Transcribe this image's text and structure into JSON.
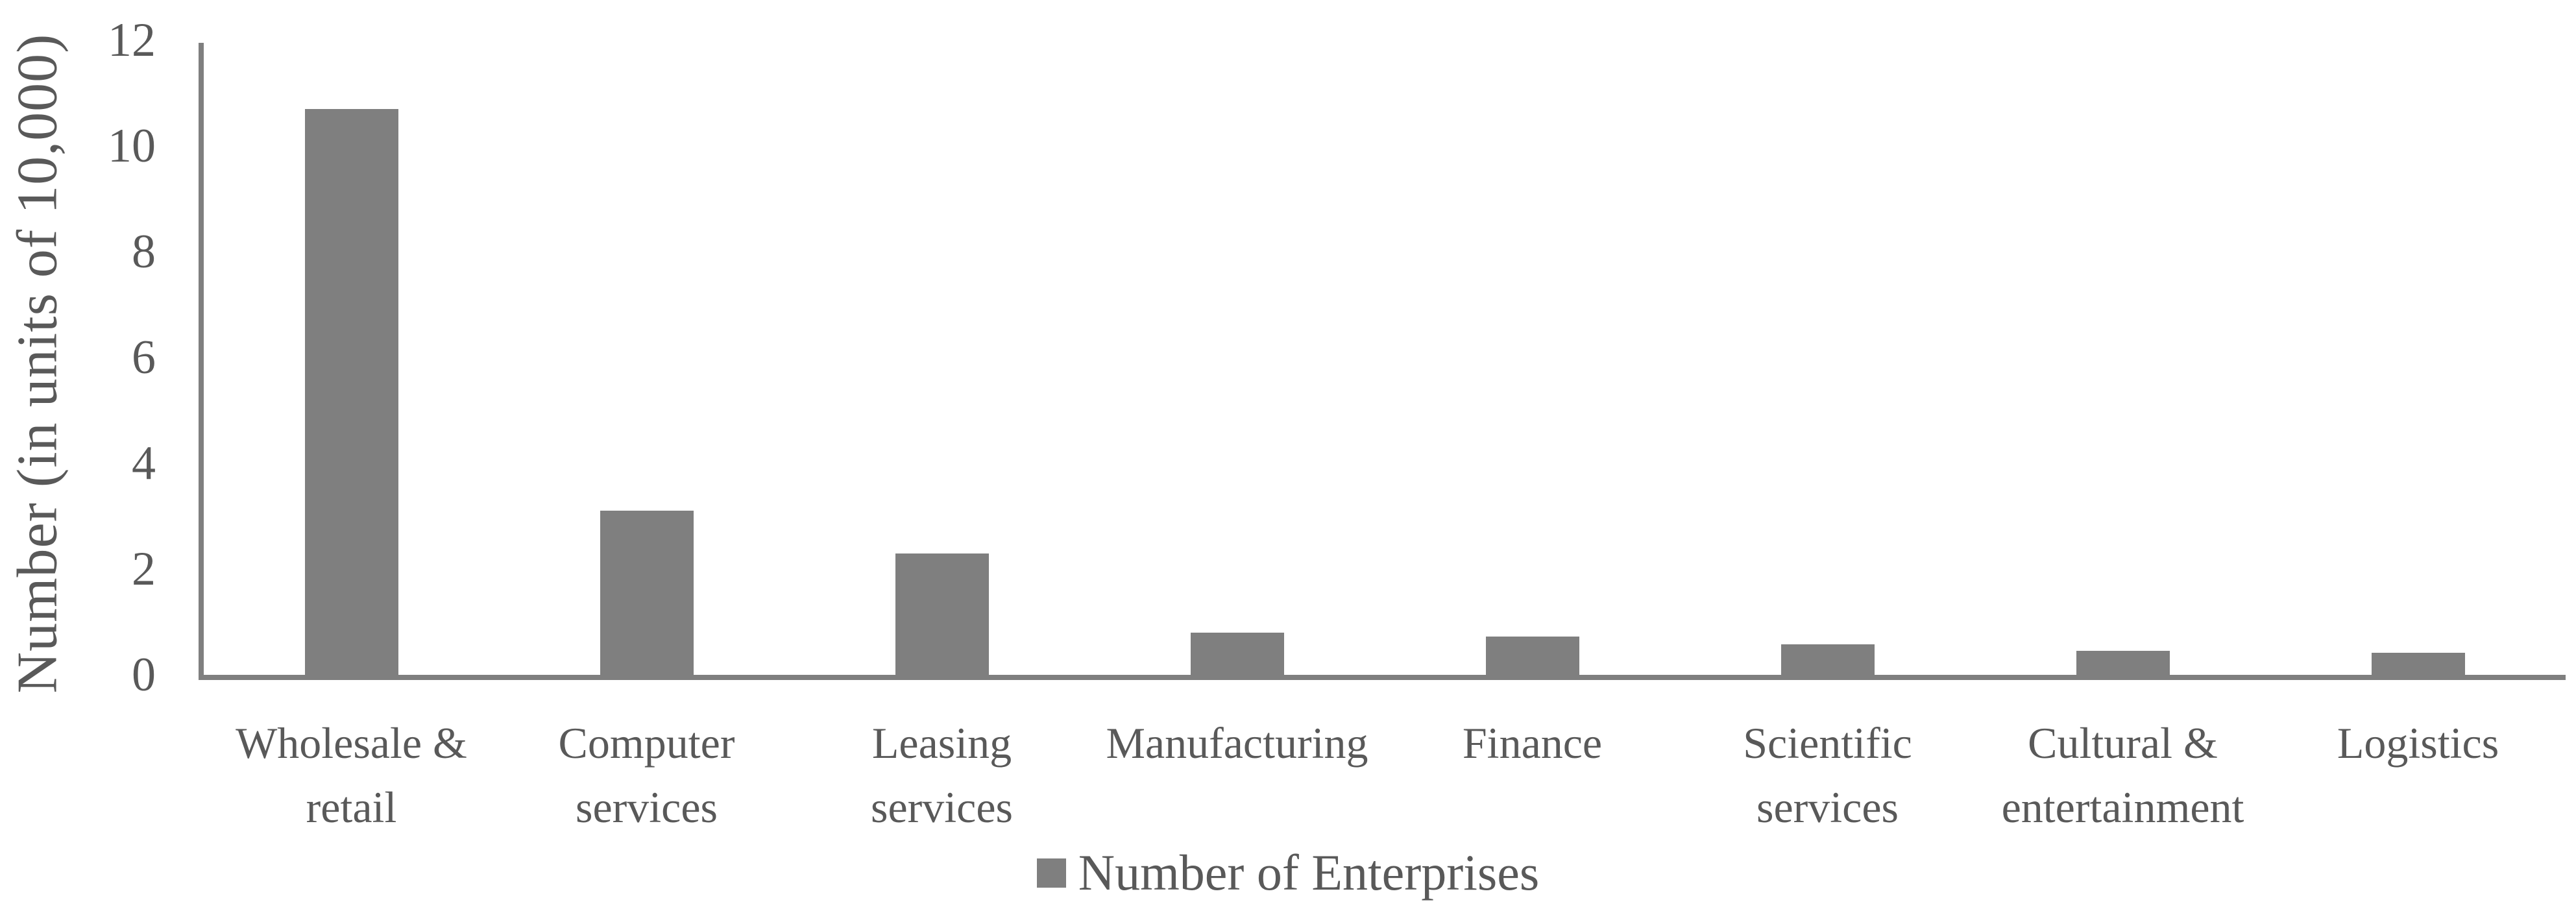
{
  "chart_data": {
    "type": "bar",
    "title": "",
    "xlabel": "",
    "ylabel": "Number (in units of 10,000)",
    "categories": [
      "Wholesale &\nretail",
      "Computer\nservices",
      "Leasing\nservices",
      "Manufacturing",
      "Finance",
      "Scientific\nservices",
      "Cultural &\nentertainment",
      "Logistics"
    ],
    "series": [
      {
        "name": "Number of Enterprises",
        "values": [
          10.7,
          3.1,
          2.3,
          0.8,
          0.73,
          0.58,
          0.45,
          0.42
        ]
      }
    ],
    "yticks": [
      0,
      2,
      4,
      6,
      8,
      10,
      12
    ],
    "ylim": [
      0,
      12
    ],
    "grid": false,
    "legend": {
      "position": "bottom-center",
      "entries": [
        {
          "label": "Number of Enterprises",
          "swatch": "square"
        }
      ]
    },
    "colors": {
      "bar": "#7f7f7f",
      "axis": "#7f7f7f",
      "text": "#595959",
      "background": "#ffffff"
    }
  }
}
